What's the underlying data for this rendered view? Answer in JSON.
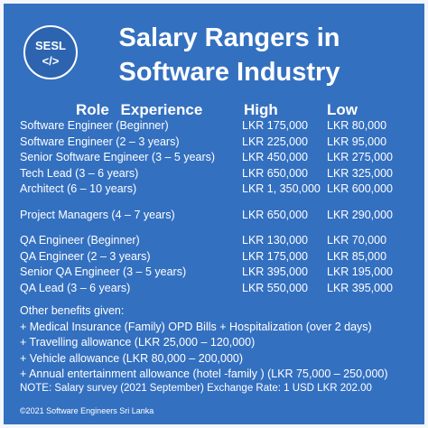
{
  "logo": {
    "name": "SESL",
    "icon": "</>"
  },
  "title": [
    "Salary Rangers in",
    "Software Industry"
  ],
  "table": {
    "header": [
      "Role Experience",
      "High",
      "Low"
    ],
    "groups": [
      [
        [
          "Software Engineer (Beginner)",
          "LKR 175,000",
          "LKR 80,000"
        ],
        [
          "Software Engineer (2 – 3 years)",
          "LKR 225,000",
          "LKR 95,000"
        ],
        [
          "Senior Software Engineer (3 – 5 years)",
          "LKR 450,000",
          "LKR 275,000"
        ],
        [
          "Tech Lead (3 – 6 years)",
          "LKR 650,000",
          "LKR 325,000"
        ],
        [
          "Architect (6 – 10 years)",
          "LKR 1, 350,000",
          "LKR 600,000"
        ]
      ],
      [
        [
          "Project Managers (4 – 7 years)",
          "LKR 650,000",
          "LKR 290,000"
        ]
      ],
      [
        [
          "QA Engineer (Beginner)",
          "LKR 130,000",
          "LKR 70,000"
        ],
        [
          "QA Engineer (2 – 3 years)",
          "LKR 175,000",
          "LKR 85,000"
        ],
        [
          "Senior QA Engineer (3 – 5 years)",
          "LKR 395,000",
          "LKR 195,000"
        ],
        [
          "QA Lead (3 – 6 years)",
          "LKR 550,000",
          "LKR 395,000"
        ]
      ]
    ]
  },
  "benefits": {
    "heading": "Other benefits given:",
    "items": [
      "+ Medical Insurance (Family) OPD Bills + Hospitalization (over 2 days)",
      "+ Travelling allowance (LKR 25,000 – 120,000)",
      "+ Vehicle allowance (LKR 80,000 – 200,000)",
      "+ Annual entertainment allowance (hotel -family ) (LKR 75,000 – 250,000)"
    ]
  },
  "note": "NOTE: Salary survey (2021 September) Exchange Rate: 1 USD LKR 202.00",
  "copyright": "©2021 Software Engineers Sri Lanka"
}
